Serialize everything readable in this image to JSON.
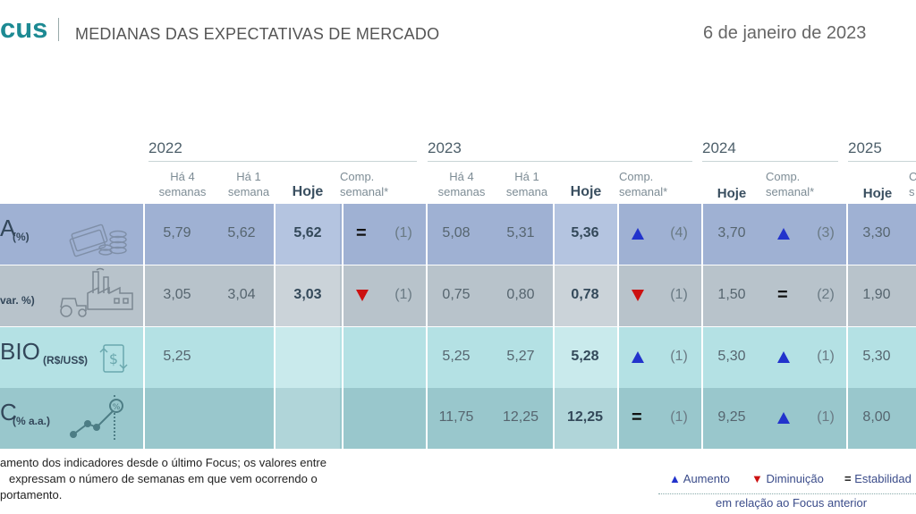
{
  "header": {
    "brand": "cus",
    "subtitle": "MEDIANAS DAS EXPECTATIVAS DE MERCADO",
    "date": "6 de janeiro de 2023"
  },
  "years": [
    "2022",
    "2023",
    "2024",
    "2025"
  ],
  "columns": {
    "ha4_line1": "Há 4",
    "ha4_line2": "semanas",
    "ha1_line1": "Há 1",
    "ha1_line2": "semana",
    "hoje": "Hoje",
    "comp_line1": "Comp.",
    "comp_line2": "semanal*",
    "cut_line1": "C",
    "cut_line2": "s"
  },
  "rows": [
    {
      "label": "A",
      "unit": "(%)",
      "y2022": {
        "ha4": "5,79",
        "ha1": "5,62",
        "hoje": "5,62",
        "comp": "=",
        "count": "(1)"
      },
      "y2023": {
        "ha4": "5,08",
        "ha1": "5,31",
        "hoje": "5,36",
        "comp": "up",
        "count": "(4)"
      },
      "y2024": {
        "hoje": "3,70",
        "comp": "up",
        "count": "(3)"
      },
      "y2025": {
        "hoje": "3,30"
      }
    },
    {
      "label": "",
      "unit": "var. %)",
      "y2022": {
        "ha4": "3,05",
        "ha1": "3,04",
        "hoje": "3,03",
        "comp": "down",
        "count": "(1)"
      },
      "y2023": {
        "ha4": "0,75",
        "ha1": "0,80",
        "hoje": "0,78",
        "comp": "down",
        "count": "(1)"
      },
      "y2024": {
        "hoje": "1,50",
        "comp": "=",
        "count": "(2)"
      },
      "y2025": {
        "hoje": "1,90"
      }
    },
    {
      "label": "BIO",
      "unit": "(R$/US$)",
      "y2022": {
        "ha4": "5,25",
        "ha1": "",
        "hoje": "",
        "comp": "",
        "count": ""
      },
      "y2023": {
        "ha4": "5,25",
        "ha1": "5,27",
        "hoje": "5,28",
        "comp": "up",
        "count": "(1)"
      },
      "y2024": {
        "hoje": "5,30",
        "comp": "up",
        "count": "(1)"
      },
      "y2025": {
        "hoje": "5,30"
      }
    },
    {
      "label": "C",
      "unit": "(% a.a.)",
      "y2022": {
        "ha4": "",
        "ha1": "",
        "hoje": "",
        "comp": "",
        "count": ""
      },
      "y2023": {
        "ha4": "11,75",
        "ha1": "12,25",
        "hoje": "12,25",
        "comp": "=",
        "count": "(1)"
      },
      "y2024": {
        "hoje": "9,25",
        "comp": "up",
        "count": "(1)"
      },
      "y2025": {
        "hoje": "8,00"
      }
    }
  ],
  "footnote": [
    "amento dos indicadores desde o último Focus; os valores entre",
    "expressam o número de semanas em que vem ocorrendo o",
    "portamento."
  ],
  "legend": {
    "up": "Aumento",
    "down": "Diminuição",
    "eq": "Estabilidad",
    "sub": "em relação ao Focus anterior"
  },
  "colors": {
    "brand": "#1d8a93",
    "row1": "#9fb1d3",
    "row1_hoje": "#b4c4e0",
    "row2": "#b8c3cb",
    "row2_hoje": "#cbd3d9",
    "row3": "#b4e1e4",
    "row3_hoje": "#c9eaec",
    "row4": "#99c7cc",
    "row4_hoje": "#b0d5d9",
    "up": "#2233cc",
    "down": "#cc1111"
  }
}
